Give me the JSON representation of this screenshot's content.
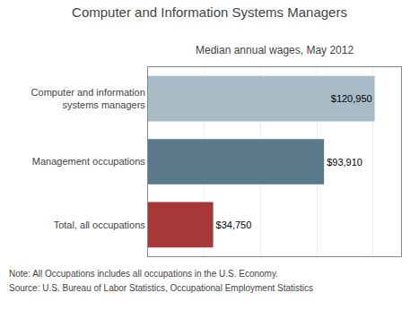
{
  "chart_data": {
    "type": "bar",
    "orientation": "horizontal",
    "title": "Computer and Information Systems Managers",
    "subtitle": "Median annual wages, May 2012",
    "categories": [
      "Computer and information\nsystems managers",
      "Management occupations",
      "Total, all occupations"
    ],
    "values": [
      120950,
      93910,
      34750
    ],
    "value_labels": [
      "$120,950",
      "$93,910",
      "$34,750"
    ],
    "colors": [
      "#a8bcc8",
      "#5a7a8c",
      "#a83838"
    ],
    "data_labels": true,
    "xlim": [
      0,
      135000
    ],
    "xticks": [
      0,
      30000,
      60000,
      90000,
      120000
    ],
    "grid": true,
    "tick_labels": "y",
    "note": "Note: All Occupations includes all occupations in the U.S. Economy.",
    "source": "Source: U.S. Bureau of Labor Statistics, Occupational Employment Statistics"
  }
}
